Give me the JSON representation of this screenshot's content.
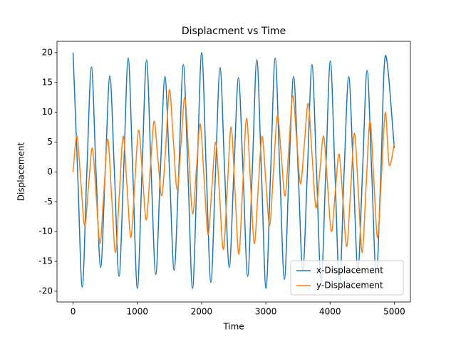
{
  "chart_data": {
    "type": "line",
    "title": "Displacment vs Time",
    "xlabel": "Time",
    "ylabel": "Displacement",
    "xlim": [
      -250,
      5250
    ],
    "ylim": [
      -21.8,
      21.9
    ],
    "xticks": [
      0,
      1000,
      2000,
      3000,
      4000,
      5000
    ],
    "yticks": [
      -20,
      -15,
      -10,
      -5,
      0,
      5,
      10,
      15,
      20
    ],
    "legend": "lower right",
    "series": [
      {
        "name": "x-Displacement",
        "color": "#1f77b4",
        "x": [
          0,
          71.5,
          143,
          214.5,
          286,
          357.5,
          429,
          500.5,
          572,
          643.5,
          715,
          786.5,
          858,
          929.5,
          1001,
          1072.5,
          1144,
          1215.5,
          1287,
          1358.5,
          1430,
          1501.5,
          1573,
          1644.5,
          1716,
          1787.5,
          1859,
          1930.5,
          2002,
          2073.5,
          2145,
          2216.5,
          2288,
          2359.5,
          2431,
          2502.5,
          2574,
          2645.5,
          2717,
          2788.5,
          2860,
          2931.5,
          3003,
          3074.5,
          3146,
          3217.5,
          3289,
          3360.5,
          3432,
          3503.5,
          3575,
          3646.5,
          3718,
          3789.5,
          3861,
          3932.5,
          4004,
          4075.5,
          4147,
          4218.5,
          4290,
          4361.5,
          4433,
          4504.5,
          4576,
          4647.5,
          4719,
          4790.5,
          4862,
          5000
        ],
        "values": [
          20,
          0,
          -19.3,
          0,
          17.6,
          0,
          -16,
          0,
          16.1,
          0,
          -17.5,
          0,
          19.1,
          0,
          -19.5,
          0,
          18.8,
          0,
          -17.2,
          0,
          16,
          0,
          -16.5,
          0,
          18,
          0,
          -19.5,
          0,
          20,
          0,
          -18.5,
          0,
          17.5,
          0,
          -16,
          0,
          15.8,
          0,
          -17.5,
          0,
          18.8,
          0,
          -19.5,
          0,
          19.1,
          0,
          -18,
          0,
          16,
          0,
          -16.5,
          0,
          18,
          0,
          -18.5,
          0,
          18.6,
          0,
          -19,
          0,
          16,
          0,
          -16.5,
          0,
          17,
          0,
          -17.5,
          0,
          19.5,
          4
        ]
      },
      {
        "name": "y-Displacement",
        "color": "#ff7f0e",
        "x": [
          0,
          60,
          120,
          180,
          240,
          300,
          360,
          420,
          480,
          540,
          600,
          660,
          720,
          780,
          840,
          900,
          960,
          1020,
          1080,
          1140,
          1200,
          1260,
          1320,
          1380,
          1440,
          1500,
          1560,
          1620,
          1680,
          1740,
          1800,
          1860,
          1920,
          1980,
          2040,
          2100,
          2160,
          2220,
          2280,
          2340,
          2400,
          2460,
          2520,
          2580,
          2640,
          2700,
          2760,
          2820,
          2880,
          2940,
          3000,
          3060,
          3120,
          3180,
          3240,
          3300,
          3360,
          3420,
          3480,
          3540,
          3600,
          3660,
          3720,
          3780,
          3840,
          3900,
          3960,
          4020,
          4080,
          4140,
          4200,
          4260,
          4320,
          4380,
          4440,
          4500,
          4560,
          4620,
          4680,
          4740,
          4800,
          4860,
          4920,
          5000
        ],
        "values": [
          0,
          6,
          -1.5,
          -9,
          -2.5,
          4,
          -4,
          -12,
          -3.25,
          5.5,
          -4,
          -13.5,
          -3.75,
          6,
          -2.5,
          -11,
          -2,
          7,
          -0.5,
          -8,
          0.25,
          8.5,
          2.25,
          -4,
          3.75,
          13.8,
          5.4,
          -3,
          4.75,
          12.5,
          2.75,
          -7,
          0.5,
          8,
          -1.25,
          -10.5,
          -2.75,
          5,
          -4,
          -13,
          -2.75,
          7.5,
          -3.15,
          -13.8,
          -2.4,
          9,
          -1.5,
          -12,
          -3,
          6,
          -1.5,
          -9,
          0.25,
          9.5,
          2.75,
          -4,
          4.4,
          12.8,
          5.4,
          -2,
          4.75,
          11.5,
          2.75,
          -6,
          0,
          6,
          -2,
          -10,
          -3.5,
          3,
          -4.75,
          -12.5,
          -3,
          6.5,
          -3.5,
          -13.5,
          -2.5,
          8.5,
          -1.25,
          -11,
          -0.5,
          10,
          1.2,
          4.8
        ]
      }
    ]
  }
}
